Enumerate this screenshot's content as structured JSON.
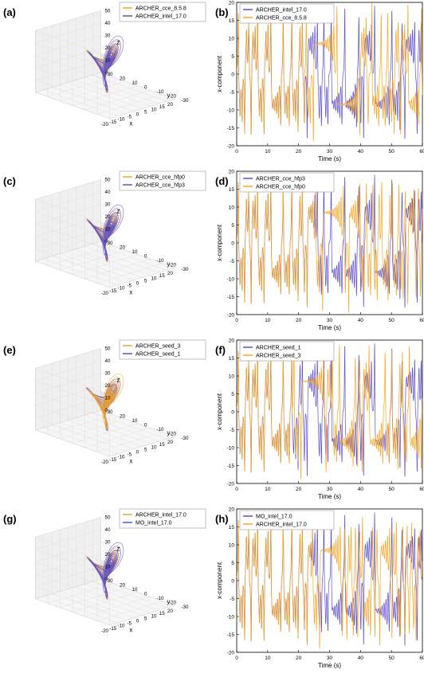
{
  "colors": {
    "orange": "#f5a623",
    "purple": "#5a4fcf",
    "axis": "#000000"
  },
  "chart_data": [
    {
      "panel": "(a)",
      "type": "line3d",
      "legend": [
        "ARCHER_cce_8.5.8",
        "ARCHER_intel_17.0"
      ],
      "series_colors": [
        "#f5a623",
        "#5a4fcf"
      ],
      "front_color_index": 1,
      "xlabel": "x",
      "ylabel": "y",
      "zlabel": "z",
      "xticks": [
        "-20",
        "-15",
        "-10",
        "-5",
        "0",
        "5",
        "10",
        "15",
        "20"
      ],
      "yticks": [
        "30",
        "20",
        "10",
        "0",
        "-10",
        "-20",
        "-30"
      ],
      "zticks": [
        "0",
        "10",
        "20",
        "30",
        "40",
        "50"
      ],
      "xlim": [
        -20,
        20
      ],
      "ylim": [
        -30,
        30
      ],
      "zlim": [
        0,
        50
      ]
    },
    {
      "panel": "(b)",
      "type": "line",
      "legend": [
        "ARCHER_intel_17.0",
        "ARCHER_cce_8.5.8"
      ],
      "series_colors": [
        "#5a4fcf",
        "#f5a623"
      ],
      "diverge_time": 22,
      "xlabel": "Time (s)",
      "ylabel": "x-component",
      "xlim": [
        0,
        60
      ],
      "ylim": [
        -20,
        20
      ],
      "xticks": [
        "0",
        "10",
        "20",
        "30",
        "40",
        "50",
        "60"
      ],
      "yticks": [
        "20",
        "15",
        "10",
        "5",
        "0",
        "-5",
        "-10",
        "-15",
        "-20"
      ]
    },
    {
      "panel": "(c)",
      "type": "line3d",
      "legend": [
        "ARCHER_cce_hfp0",
        "ARCHER_cce_hfp3"
      ],
      "series_colors": [
        "#f5a623",
        "#5a4fcf"
      ],
      "front_color_index": 1,
      "xlabel": "x",
      "ylabel": "y",
      "zlabel": "z",
      "xticks": [
        "-20",
        "-15",
        "-10",
        "-5",
        "0",
        "5",
        "10",
        "15",
        "20"
      ],
      "yticks": [
        "30",
        "20",
        "10",
        "0",
        "-10",
        "-20",
        "-30"
      ],
      "zticks": [
        "0",
        "10",
        "20",
        "30",
        "40",
        "50"
      ],
      "xlim": [
        -20,
        20
      ],
      "ylim": [
        -30,
        30
      ],
      "zlim": [
        0,
        50
      ]
    },
    {
      "panel": "(d)",
      "type": "line",
      "legend": [
        "ARCHER_cce_hfp3",
        "ARCHER_cce_hfp0"
      ],
      "series_colors": [
        "#5a4fcf",
        "#f5a623"
      ],
      "diverge_time": 25,
      "xlabel": "Time (s)",
      "ylabel": "x-component",
      "xlim": [
        0,
        60
      ],
      "ylim": [
        -20,
        20
      ],
      "xticks": [
        "0",
        "10",
        "20",
        "30",
        "40",
        "50",
        "60"
      ],
      "yticks": [
        "20",
        "15",
        "10",
        "5",
        "0",
        "-5",
        "-10",
        "-15",
        "-20"
      ]
    },
    {
      "panel": "(e)",
      "type": "line3d",
      "legend": [
        "ARCHER_seed_3",
        "ARCHER_seed_1"
      ],
      "series_colors": [
        "#f5a623",
        "#5a4fcf"
      ],
      "front_color_index": 0,
      "xlabel": "x",
      "ylabel": "y",
      "zlabel": "z",
      "xticks": [
        "-20",
        "-15",
        "-10",
        "-5",
        "0",
        "5",
        "10",
        "15",
        "20"
      ],
      "yticks": [
        "30",
        "20",
        "10",
        "0",
        "-10",
        "-20",
        "-30"
      ],
      "zticks": [
        "0",
        "10",
        "20",
        "30",
        "40",
        "50"
      ],
      "xlim": [
        -20,
        20
      ],
      "ylim": [
        -30,
        30
      ],
      "zlim": [
        0,
        50
      ]
    },
    {
      "panel": "(f)",
      "type": "line",
      "legend": [
        "ARCHER_seed_1",
        "ARCHER_seed_3"
      ],
      "series_colors": [
        "#5a4fcf",
        "#f5a623"
      ],
      "diverge_time": 18,
      "xlabel": "Time (s)",
      "ylabel": "x-component",
      "xlim": [
        0,
        60
      ],
      "ylim": [
        -20,
        20
      ],
      "xticks": [
        "0",
        "10",
        "20",
        "30",
        "40",
        "50",
        "60"
      ],
      "yticks": [
        "20",
        "15",
        "10",
        "5",
        "0",
        "-5",
        "-10",
        "-15",
        "-20"
      ]
    },
    {
      "panel": "(g)",
      "type": "line3d",
      "legend": [
        "ARCHER_intel_17.0",
        "MO_intel_17.0"
      ],
      "series_colors": [
        "#f5a623",
        "#5a4fcf"
      ],
      "front_color_index": 1,
      "xlabel": "x",
      "ylabel": "y",
      "zlabel": "z",
      "xticks": [
        "-20",
        "-15",
        "-10",
        "-5",
        "0",
        "5",
        "10",
        "15",
        "20"
      ],
      "yticks": [
        "30",
        "20",
        "10",
        "0",
        "-10",
        "-20",
        "-30"
      ],
      "zticks": [
        "0",
        "10",
        "20",
        "30",
        "40",
        "50"
      ],
      "xlim": [
        -20,
        20
      ],
      "ylim": [
        -30,
        30
      ],
      "zlim": [
        0,
        50
      ]
    },
    {
      "panel": "(h)",
      "type": "line",
      "legend": [
        "MO_intel_17.0",
        "ARCHER_intel_17.0"
      ],
      "series_colors": [
        "#5a4fcf",
        "#f5a623"
      ],
      "diverge_time": 24,
      "xlabel": "Time (s)",
      "ylabel": "x-component",
      "xlim": [
        0,
        60
      ],
      "ylim": [
        -20,
        20
      ],
      "xticks": [
        "0",
        "10",
        "20",
        "30",
        "40",
        "50",
        "60"
      ],
      "yticks": [
        "20",
        "15",
        "10",
        "5",
        "0",
        "-5",
        "-10",
        "-15",
        "-20"
      ]
    }
  ]
}
